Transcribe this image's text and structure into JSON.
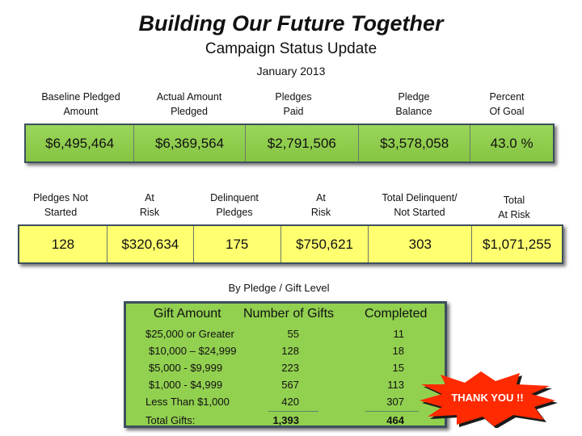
{
  "header": {
    "title": "Building Our Future Together",
    "subtitle": "Campaign Status Update",
    "date": "January 2013"
  },
  "summary": {
    "labels": [
      [
        "Baseline Pledged",
        "Amount"
      ],
      [
        "Actual Amount",
        "Pledged"
      ],
      [
        "Pledges",
        "Paid"
      ],
      [
        "Pledge",
        "Balance"
      ],
      [
        "Percent",
        "Of Goal"
      ]
    ],
    "values": [
      "$6,495,464",
      "$6,369,564",
      "$2,791,506",
      "$3,578,058",
      "43.0 %"
    ]
  },
  "risk": {
    "labels": [
      [
        "Pledges Not",
        "Started"
      ],
      [
        "At",
        "Risk"
      ],
      [
        "Delinquent",
        "Pledges"
      ],
      [
        "At",
        "Risk"
      ],
      [
        "Total Delinquent/",
        "Not Started"
      ],
      [
        "Total",
        "At Risk"
      ]
    ],
    "values": [
      "128",
      "$320,634",
      "175",
      "$750,621",
      "303",
      "$1,071,255"
    ]
  },
  "gifts": {
    "caption": "By Pledge / Gift Level",
    "headers": [
      "Gift Amount",
      "Number of Gifts",
      "Completed"
    ],
    "rows": [
      [
        "$25,000 or Greater",
        "55",
        "11"
      ],
      [
        "$10,000 – $24,999",
        "128",
        "18"
      ],
      [
        "$5,000 - $9,999",
        "223",
        "15"
      ],
      [
        "$1,000 - $4,999",
        "567",
        "113"
      ],
      [
        "Less Than $1,000",
        "420",
        "307"
      ]
    ],
    "total": [
      "Total Gifts:",
      "1,393",
      "464"
    ]
  },
  "badge": {
    "text": "THANK YOU !!"
  },
  "colors": {
    "green": "#92d050",
    "yellow": "#ffff70",
    "badge": "#ff2a00"
  }
}
